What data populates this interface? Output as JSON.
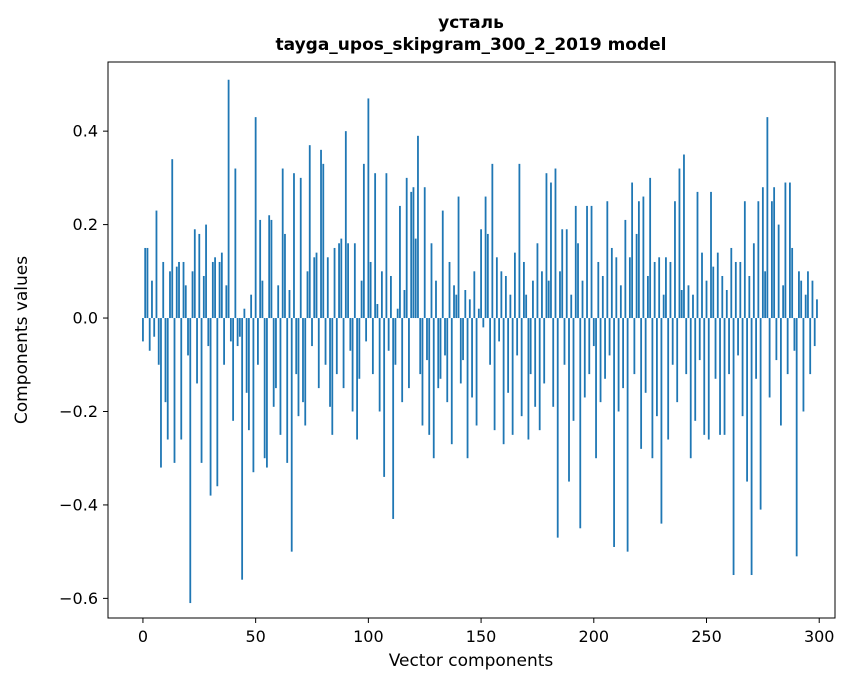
{
  "chart_data": {
    "type": "bar",
    "title_line1": "усталь",
    "title_line2": "tayga_upos_skipgram_300_2_2019 model",
    "xlabel": "Vector components",
    "ylabel": "Components values",
    "bar_color": "#1f77b4",
    "background_color": "#ffffff",
    "grid": false,
    "legend": "none",
    "xlim": [
      -15.5,
      307
    ],
    "ylim": [
      -0.642,
      0.548
    ],
    "xticks": [
      0,
      50,
      100,
      150,
      200,
      250,
      300
    ],
    "yticks": [
      -0.6,
      -0.4,
      -0.2,
      0.0,
      0.2,
      0.4
    ],
    "x_start": 0,
    "values": [
      -0.05,
      0.15,
      0.15,
      -0.07,
      0.08,
      -0.04,
      0.23,
      -0.1,
      -0.32,
      0.12,
      -0.18,
      -0.26,
      0.1,
      0.34,
      -0.31,
      0.11,
      0.12,
      -0.26,
      0.12,
      0.07,
      -0.08,
      -0.61,
      0.1,
      0.19,
      -0.14,
      0.18,
      -0.31,
      0.09,
      0.2,
      -0.06,
      -0.38,
      0.12,
      0.13,
      -0.36,
      0.12,
      0.14,
      -0.1,
      0.07,
      0.51,
      -0.05,
      -0.22,
      0.32,
      -0.06,
      -0.04,
      -0.56,
      0.02,
      -0.16,
      -0.24,
      0.05,
      -0.33,
      0.43,
      -0.1,
      0.21,
      0.08,
      -0.3,
      -0.32,
      0.22,
      0.21,
      -0.19,
      -0.15,
      0.07,
      -0.25,
      0.32,
      0.18,
      -0.31,
      0.06,
      -0.5,
      0.31,
      -0.12,
      -0.21,
      0.3,
      -0.18,
      -0.23,
      0.1,
      0.37,
      -0.06,
      0.13,
      0.14,
      -0.15,
      0.36,
      0.33,
      -0.1,
      0.13,
      -0.19,
      -0.25,
      0.15,
      -0.12,
      0.16,
      0.17,
      -0.15,
      0.4,
      0.16,
      -0.07,
      -0.2,
      0.16,
      -0.26,
      -0.13,
      0.08,
      0.33,
      -0.05,
      0.47,
      0.12,
      -0.12,
      0.31,
      0.03,
      -0.2,
      0.1,
      -0.34,
      0.31,
      -0.07,
      0.09,
      -0.43,
      -0.1,
      0.02,
      0.24,
      -0.18,
      0.06,
      0.3,
      -0.15,
      0.27,
      0.28,
      0.17,
      0.39,
      -0.12,
      -0.23,
      0.28,
      -0.09,
      -0.25,
      0.16,
      -0.3,
      0.08,
      -0.15,
      -0.13,
      0.23,
      -0.08,
      -0.18,
      0.12,
      -0.27,
      0.07,
      0.05,
      0.26,
      -0.14,
      -0.09,
      0.06,
      -0.3,
      0.04,
      -0.17,
      0.1,
      -0.23,
      0.02,
      0.19,
      -0.02,
      0.26,
      0.18,
      -0.1,
      0.33,
      -0.24,
      0.13,
      -0.05,
      0.1,
      -0.27,
      0.09,
      -0.16,
      0.05,
      -0.25,
      0.14,
      -0.08,
      0.33,
      -0.21,
      0.12,
      0.05,
      -0.26,
      -0.12,
      0.08,
      -0.19,
      0.16,
      -0.24,
      0.1,
      -0.14,
      0.31,
      0.08,
      0.29,
      -0.19,
      0.32,
      -0.47,
      0.1,
      0.19,
      -0.1,
      0.19,
      -0.35,
      0.05,
      -0.22,
      0.24,
      0.16,
      -0.45,
      0.08,
      -0.17,
      0.24,
      -0.12,
      0.24,
      -0.06,
      -0.3,
      0.12,
      -0.18,
      0.09,
      -0.13,
      0.25,
      -0.08,
      0.15,
      -0.49,
      0.13,
      -0.2,
      0.07,
      -0.15,
      0.21,
      -0.5,
      0.13,
      0.29,
      -0.12,
      0.18,
      0.25,
      -0.28,
      0.26,
      -0.16,
      0.09,
      0.3,
      -0.3,
      0.12,
      -0.21,
      0.13,
      -0.44,
      0.05,
      0.13,
      -0.26,
      0.12,
      -0.1,
      0.25,
      -0.18,
      0.32,
      0.06,
      0.35,
      -0.12,
      0.07,
      -0.3,
      0.05,
      -0.22,
      0.27,
      -0.09,
      0.14,
      -0.25,
      0.08,
      -0.26,
      0.27,
      0.11,
      -0.13,
      0.14,
      -0.25,
      0.09,
      -0.25,
      0.06,
      -0.12,
      0.15,
      -0.55,
      0.12,
      -0.08,
      0.12,
      -0.21,
      0.25,
      -0.35,
      0.09,
      -0.55,
      0.16,
      -0.13,
      0.25,
      -0.41,
      0.28,
      0.1,
      0.43,
      -0.17,
      0.25,
      0.28,
      -0.09,
      0.2,
      -0.23,
      0.07,
      0.29,
      -0.12,
      0.29,
      0.15,
      -0.07,
      -0.51,
      0.1,
      0.08,
      -0.2,
      0.05,
      0.1,
      -0.12,
      0.08,
      -0.06,
      0.04
    ]
  }
}
